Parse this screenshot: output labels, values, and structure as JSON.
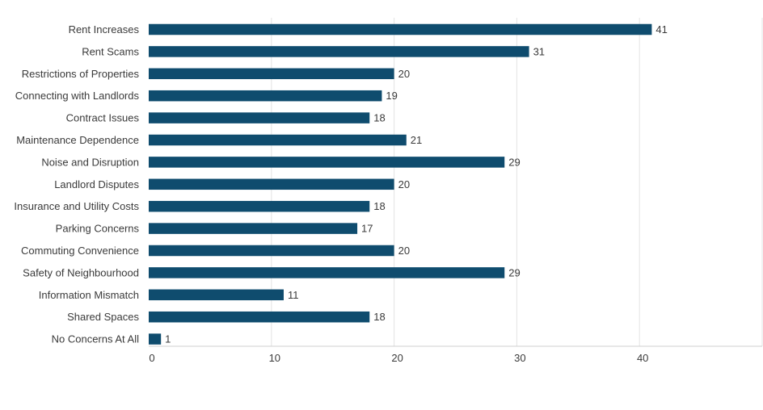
{
  "chart_data": {
    "type": "bar",
    "orientation": "horizontal",
    "title": "",
    "xlabel": "",
    "ylabel": "",
    "categories": [
      "Rent Increases",
      "Rent Scams",
      "Restrictions of Properties",
      "Connecting with Landlords",
      "Contract Issues",
      "Maintenance Dependence",
      "Noise and Disruption",
      "Landlord Disputes",
      "Insurance and Utility Costs",
      "Parking Concerns",
      "Commuting Convenience",
      "Safety of Neighbourhood",
      "Information Mismatch",
      "Shared Spaces",
      "No Concerns At All"
    ],
    "values": [
      41,
      31,
      20,
      19,
      18,
      21,
      29,
      20,
      18,
      17,
      20,
      29,
      11,
      18,
      1
    ],
    "xlim": [
      0,
      50
    ],
    "xticks": [
      "0",
      "10",
      "20",
      "30",
      "40"
    ],
    "bar_color": "#0f4c6e",
    "grid": true,
    "data_labels": true
  }
}
